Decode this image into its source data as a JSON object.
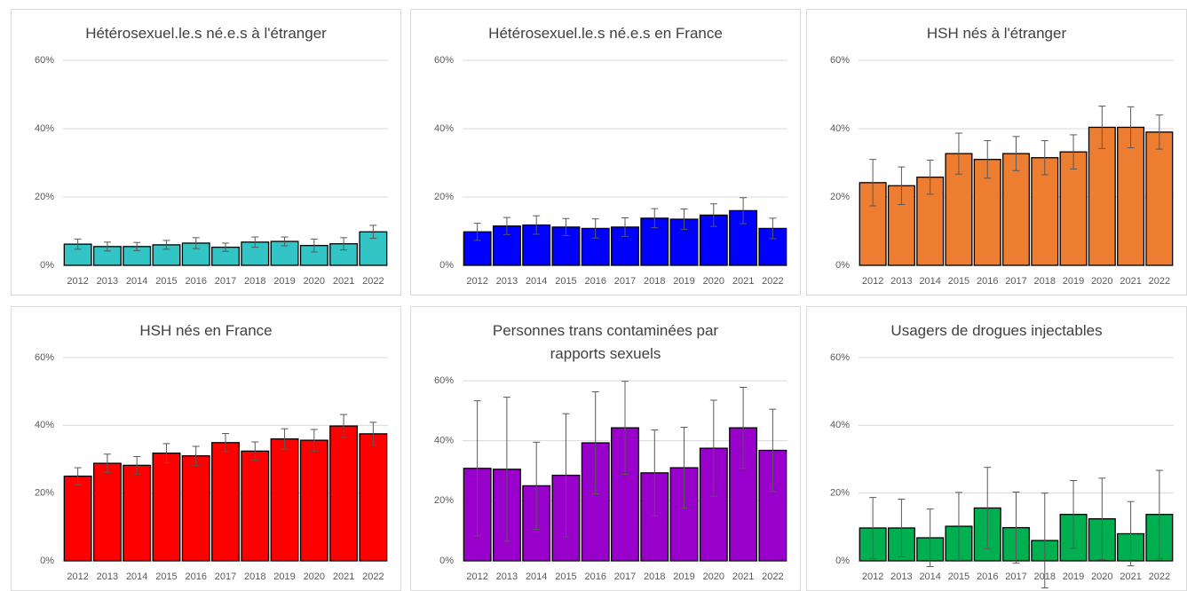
{
  "chart_data": [
    {
      "type": "bar",
      "title": "Hétérosexuel.le.s né.e.s à l'étranger",
      "color": "#33c5c5",
      "categories": [
        "2012",
        "2013",
        "2014",
        "2015",
        "2016",
        "2017",
        "2018",
        "2019",
        "2020",
        "2021",
        "2022"
      ],
      "values": [
        6.2,
        5.5,
        5.5,
        6,
        6.5,
        5.3,
        6.8,
        7,
        5.8,
        6.3,
        9.8
      ],
      "errors": [
        1.5,
        1.3,
        1.2,
        1.3,
        1.6,
        1.2,
        1.5,
        1.3,
        1.9,
        1.8,
        1.9
      ],
      "ylim": [
        0,
        60
      ],
      "yticks": [
        {
          "value": 0,
          "label": "0%"
        },
        {
          "value": 20,
          "label": "20%"
        },
        {
          "value": 40,
          "label": "40%"
        },
        {
          "value": 60,
          "label": "60%"
        }
      ],
      "grid": true
    },
    {
      "type": "bar",
      "title": "Hétérosexuel.le.s né.e.s en France",
      "color": "#0000ff",
      "categories": [
        "2012",
        "2013",
        "2014",
        "2015",
        "2016",
        "2017",
        "2018",
        "2019",
        "2020",
        "2021",
        "2022"
      ],
      "values": [
        9.8,
        11.5,
        11.8,
        11.2,
        10.8,
        11.2,
        13.8,
        13.5,
        14.7,
        16,
        10.8
      ],
      "errors": [
        2.5,
        2.5,
        2.7,
        2.5,
        2.8,
        2.7,
        2.8,
        3,
        3.3,
        3.8,
        3
      ],
      "ylim": [
        0,
        60
      ],
      "yticks": [
        {
          "value": 0,
          "label": "0%"
        },
        {
          "value": 20,
          "label": "20%"
        },
        {
          "value": 40,
          "label": "40%"
        },
        {
          "value": 60,
          "label": "60%"
        }
      ],
      "grid": true
    },
    {
      "type": "bar",
      "title": "HSH nés à l'étranger",
      "color": "#ed7d31",
      "categories": [
        "2012",
        "2013",
        "2014",
        "2015",
        "2016",
        "2017",
        "2018",
        "2019",
        "2020",
        "2021",
        "2022"
      ],
      "values": [
        24.2,
        23.3,
        25.8,
        32.7,
        31,
        32.7,
        31.5,
        33.2,
        40.4,
        40.4,
        39
      ],
      "errors": [
        6.8,
        5.5,
        5,
        6,
        5.5,
        5,
        5,
        5,
        6.2,
        6,
        5
      ],
      "ylim": [
        0,
        60
      ],
      "yticks": [
        {
          "value": 0,
          "label": "0%"
        },
        {
          "value": 20,
          "label": "20%"
        },
        {
          "value": 40,
          "label": "40%"
        },
        {
          "value": 60,
          "label": "60%"
        }
      ],
      "grid": true
    },
    {
      "type": "bar",
      "title": "HSH nés en France",
      "color": "#ff0000",
      "categories": [
        "2012",
        "2013",
        "2014",
        "2015",
        "2016",
        "2017",
        "2018",
        "2019",
        "2020",
        "2021",
        "2022"
      ],
      "values": [
        25,
        28.8,
        28.2,
        31.8,
        31,
        34.9,
        32.4,
        36,
        35.6,
        39.8,
        37.5
      ],
      "errors": [
        2.5,
        2.7,
        2.6,
        2.8,
        2.8,
        2.7,
        2.7,
        3,
        3.2,
        3.4,
        3.4
      ],
      "ylim": [
        0,
        60
      ],
      "yticks": [
        {
          "value": 0,
          "label": "0%"
        },
        {
          "value": 20,
          "label": "20%"
        },
        {
          "value": 40,
          "label": "40%"
        },
        {
          "value": 60,
          "label": "60%"
        }
      ],
      "grid": true
    },
    {
      "type": "bar",
      "title": "Personnes trans contaminées par rapports sexuels",
      "color": "#9900cc",
      "categories": [
        "2012",
        "2013",
        "2014",
        "2015",
        "2016",
        "2017",
        "2018",
        "2019",
        "2020",
        "2021",
        "2022"
      ],
      "values": [
        30.8,
        30.5,
        25,
        28.5,
        39.3,
        44.3,
        29.3,
        31,
        37.5,
        44.3,
        36.8
      ],
      "errors": [
        22.5,
        24,
        14.5,
        20.5,
        17,
        15.5,
        14.3,
        13.5,
        16,
        13.5,
        13.7
      ],
      "ylim": [
        0,
        60
      ],
      "yticks": [
        {
          "value": 0,
          "label": "0%"
        },
        {
          "value": 20,
          "label": "20%"
        },
        {
          "value": 40,
          "label": "40%"
        },
        {
          "value": 60,
          "label": "60%"
        }
      ],
      "grid": true
    },
    {
      "type": "bar",
      "title": "Usagers de drogues injectables",
      "color": "#00b050",
      "categories": [
        "2012",
        "2013",
        "2014",
        "2015",
        "2016",
        "2017",
        "2018",
        "2019",
        "2020",
        "2021",
        "2022"
      ],
      "values": [
        9.7,
        9.7,
        6.8,
        10.2,
        15.6,
        9.8,
        6,
        13.7,
        12.4,
        8,
        13.7
      ],
      "errors": [
        9,
        8.5,
        8.5,
        10,
        12,
        10.5,
        14,
        10,
        12,
        9.5,
        13
      ],
      "ylim": [
        0,
        60
      ],
      "yticks": [
        {
          "value": 0,
          "label": "0%"
        },
        {
          "value": 20,
          "label": "20%"
        },
        {
          "value": 40,
          "label": "40%"
        },
        {
          "value": 60,
          "label": "60%"
        }
      ],
      "grid": true
    }
  ]
}
